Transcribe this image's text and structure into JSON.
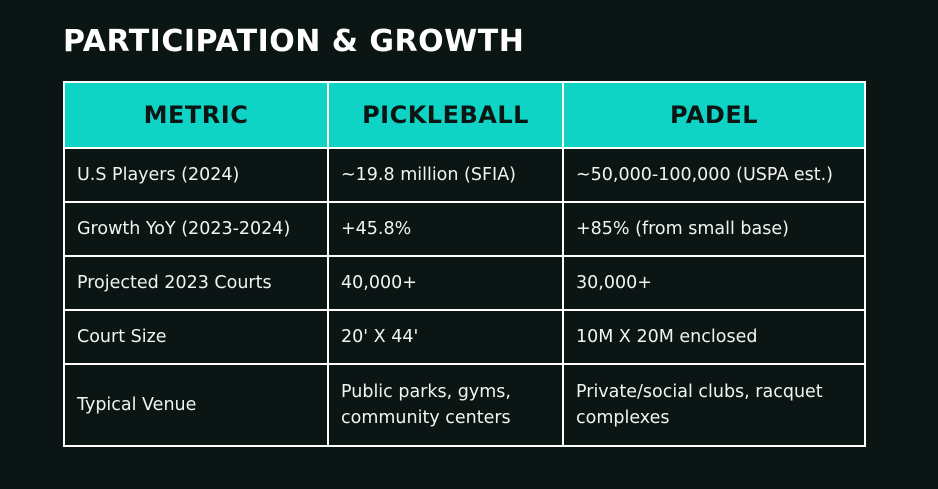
{
  "title": "PARTICIPATION & GROWTH",
  "colors": {
    "background": "#0b1614",
    "header_fill": "#0fd3c5",
    "border": "#ffffff",
    "text": "#f2f2f2"
  },
  "table": {
    "headers": [
      "METRIC",
      "PICKLEBALL",
      "PADEL"
    ],
    "rows": [
      [
        "U.S Players (2024)",
        "~19.8 million (SFIA)",
        "~50,000-100,000 (USPA est.)"
      ],
      [
        "Growth YoY (2023-2024)",
        "+45.8%",
        "+85% (from small base)"
      ],
      [
        "Projected 2023 Courts",
        "40,000+",
        "30,000+"
      ],
      [
        "Court Size",
        "20' X 44'",
        "10M X 20M enclosed"
      ],
      [
        "Typical Venue",
        "Public parks, gyms, community centers",
        "Private/social clubs, racquet complexes"
      ]
    ]
  }
}
